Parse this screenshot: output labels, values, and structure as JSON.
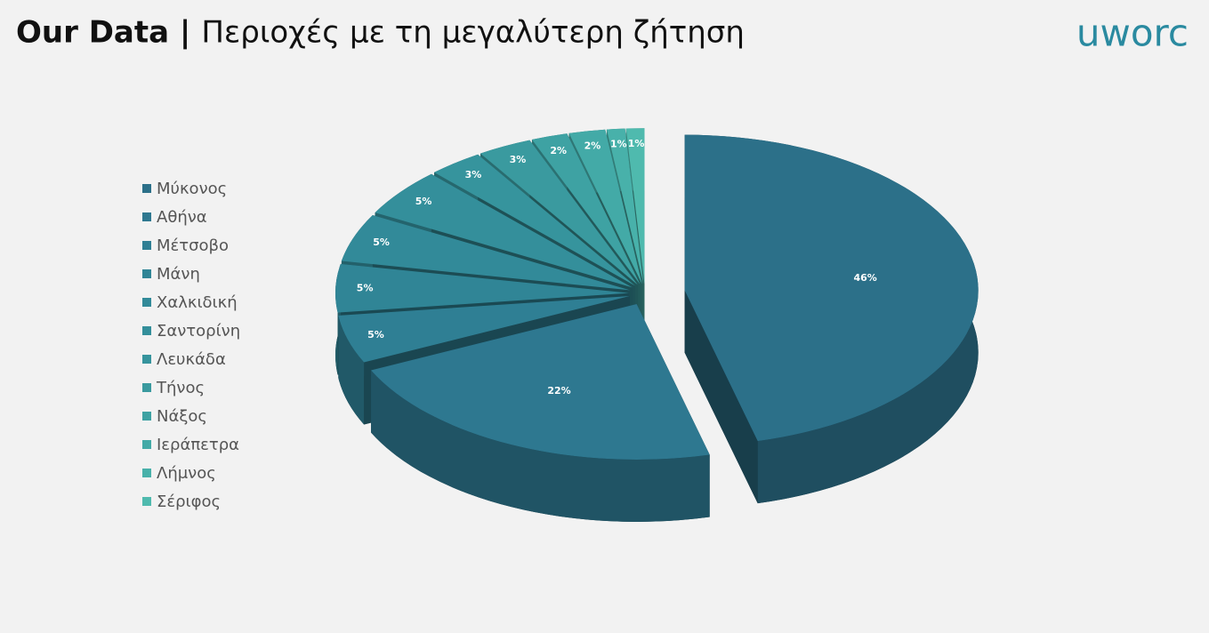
{
  "chart_data": {
    "type": "pie3d",
    "title": "Our Data |",
    "subtitle": "Περιοχές με τη μεγαλύτερη ζήτηση",
    "categories": [
      "Μύκονος",
      "Αθήνα",
      "Μέτσοβο",
      "Μάνη",
      "Χαλκιδική",
      "Σαντορίνη",
      "Λευκάδα",
      "Τήνος",
      "Νάξος",
      "Ιεράπετρα",
      "Λήμνος",
      "Σέριφος"
    ],
    "values": [
      46,
      22,
      5,
      5,
      5,
      5,
      3,
      3,
      2,
      2,
      1,
      1
    ],
    "value_labels": [
      "46%",
      "22%",
      "5%",
      "5%",
      "5%",
      "5%",
      "3%",
      "3%",
      "2%",
      "2%",
      "1%",
      "1%"
    ],
    "colors": [
      "#2c7089",
      "#2e7890",
      "#2f7f94",
      "#308596",
      "#328a99",
      "#348f9b",
      "#36949d",
      "#3a9a9f",
      "#3ea2a3",
      "#43aaa7",
      "#48b1aa",
      "#4fbaae"
    ],
    "legend": "left"
  },
  "logo": "uworc"
}
